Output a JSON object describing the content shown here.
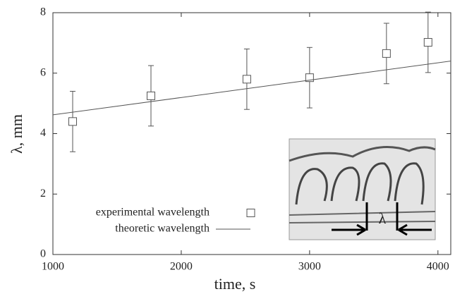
{
  "chart_data": {
    "type": "scatter",
    "xlabel": "time, s",
    "ylabel": "λ, mm",
    "xlim": [
      1000,
      4100
    ],
    "ylim": [
      0,
      8
    ],
    "xticks": [
      1000,
      2000,
      3000,
      4000
    ],
    "yticks": [
      0,
      2,
      4,
      6,
      8
    ],
    "series": [
      {
        "name": "experimental wavelength",
        "type": "errorbar",
        "color": "#555555",
        "x": [
          1154,
          1764,
          2511,
          3000,
          3599,
          3923
        ],
        "values": [
          4.4,
          5.25,
          5.8,
          5.85,
          6.65,
          7.02
        ],
        "errors": [
          1.0,
          1.0,
          1.0,
          1.0,
          1.0,
          1.0
        ]
      },
      {
        "name": "theoretic wavelength",
        "type": "line",
        "color": "#555555",
        "x": [
          1000,
          4100
        ],
        "values": [
          4.62,
          6.4
        ]
      }
    ],
    "inset_label": "λ"
  }
}
